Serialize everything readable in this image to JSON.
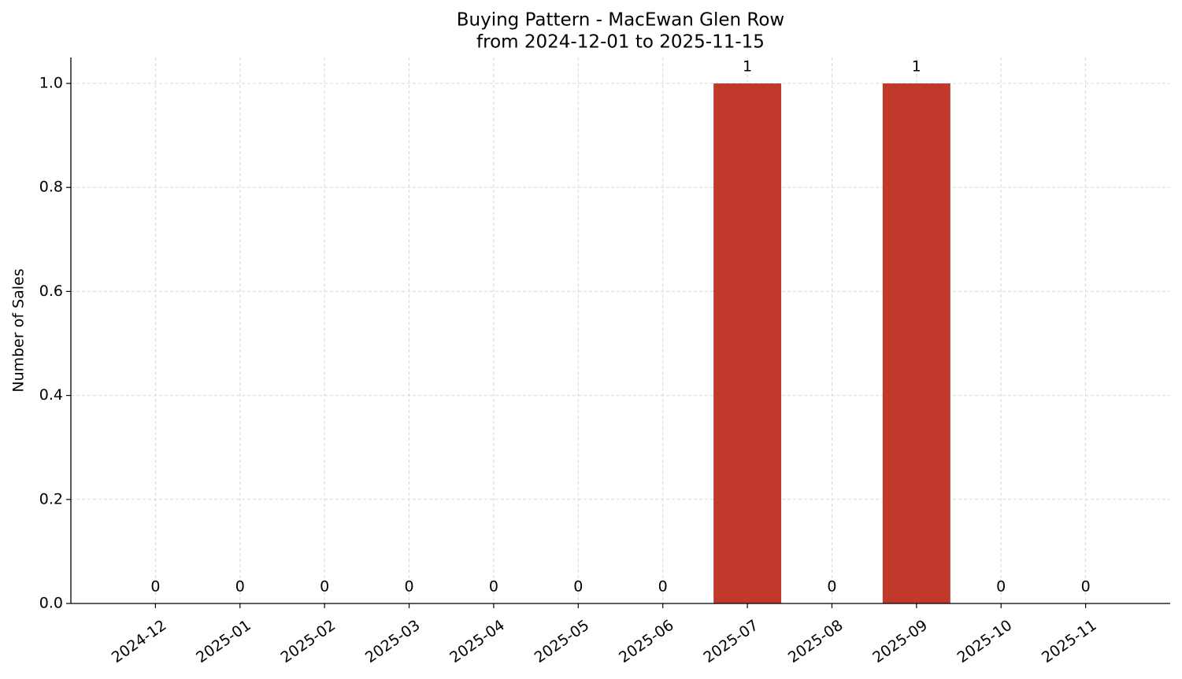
{
  "chart_data": {
    "type": "bar",
    "title": "Buying Pattern - MacEwan Glen Row",
    "subtitle": "from 2024-12-01 to 2025-11-15",
    "y_label": "Number of Sales",
    "categories": [
      "2024-12",
      "2025-01",
      "2025-02",
      "2025-03",
      "2025-04",
      "2025-05",
      "2025-06",
      "2025-07",
      "2025-08",
      "2025-09",
      "2025-10",
      "2025-11"
    ],
    "values": [
      0,
      0,
      0,
      0,
      0,
      0,
      0,
      1,
      0,
      1,
      0,
      0
    ],
    "color": "#c0392b",
    "ylim": [
      0,
      1.05
    ],
    "yticks": [
      {
        "value": 0,
        "label": "0.0"
      },
      0.2,
      0.4,
      0.6,
      0.8,
      {
        "value": 1,
        "label": "1.0"
      }
    ],
    "grid": true
  }
}
